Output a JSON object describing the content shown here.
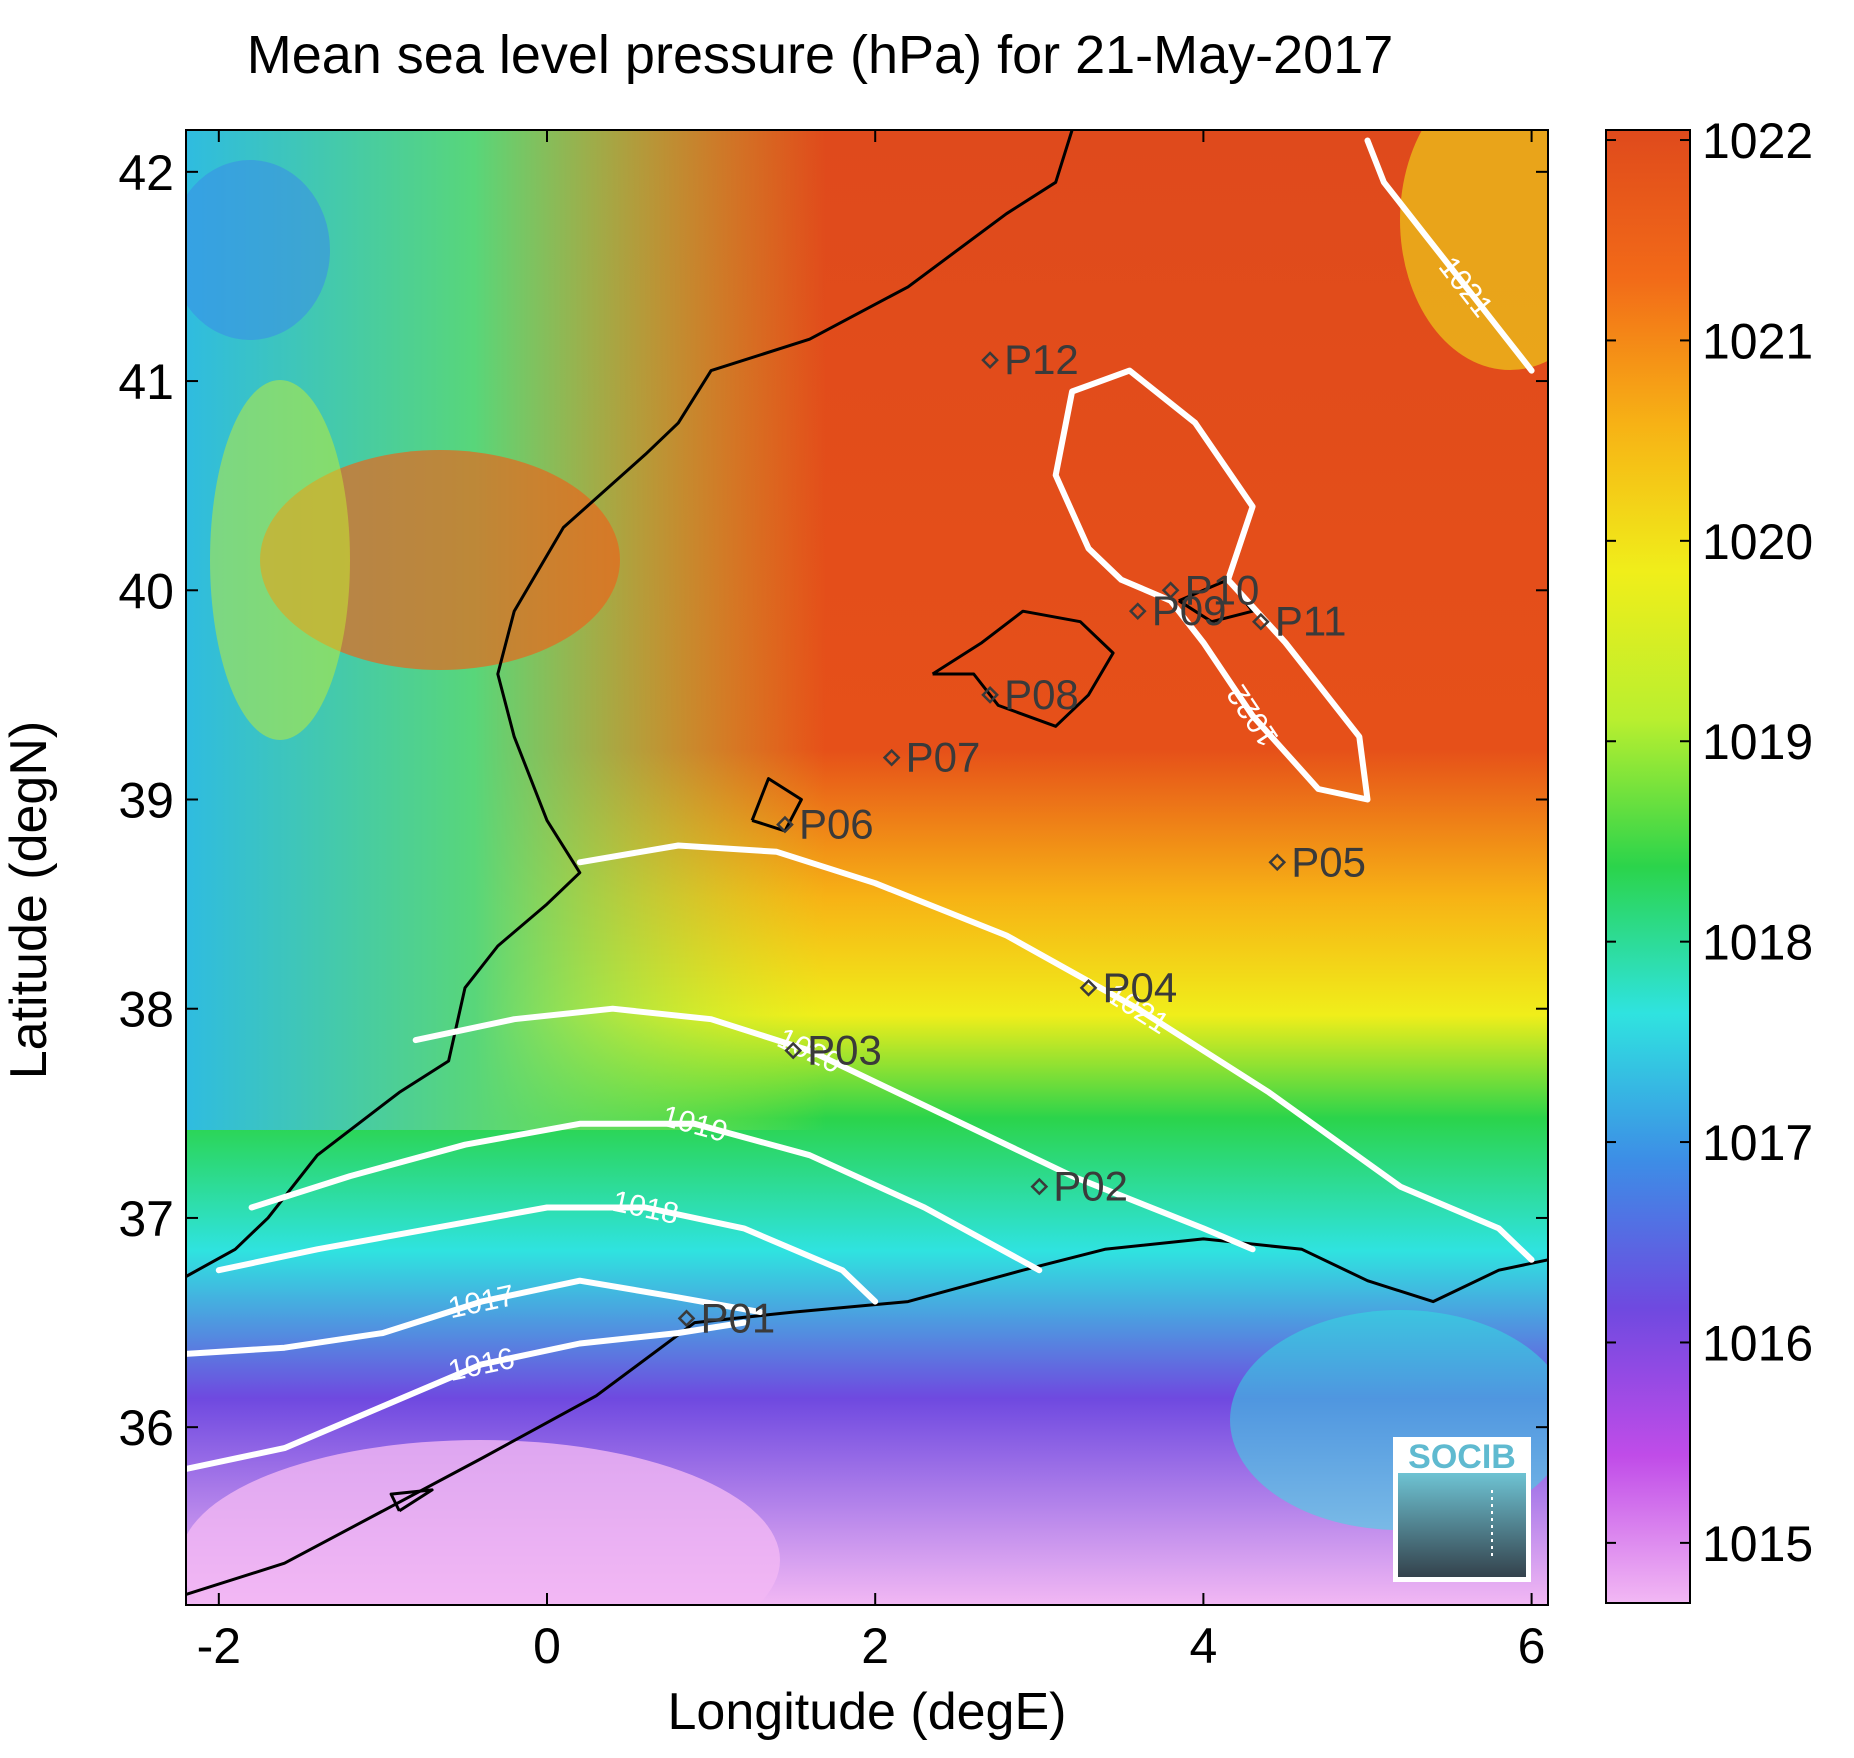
{
  "title": "Mean sea level pressure (hPa) for 21-May-2017",
  "xlabel": "Longitude (degE)",
  "ylabel": "Latitude (degN)",
  "logo_text": "SOCIB",
  "map_extent": {
    "lon": [
      -2.2,
      6.1
    ],
    "lat": [
      35.15,
      42.2
    ]
  },
  "x_ticks": [
    {
      "value": -2,
      "label": "-2"
    },
    {
      "value": 0,
      "label": "0"
    },
    {
      "value": 2,
      "label": "2"
    },
    {
      "value": 4,
      "label": "4"
    },
    {
      "value": 6,
      "label": "6"
    }
  ],
  "y_ticks": [
    {
      "value": 36,
      "label": "36"
    },
    {
      "value": 37,
      "label": "37"
    },
    {
      "value": 38,
      "label": "38"
    },
    {
      "value": 39,
      "label": "39"
    },
    {
      "value": 40,
      "label": "40"
    },
    {
      "value": 41,
      "label": "41"
    },
    {
      "value": 42,
      "label": "42"
    }
  ],
  "colorbar": {
    "range": [
      1014.7,
      1022.05
    ],
    "ticks": [
      {
        "value": 1015,
        "label": "1015"
      },
      {
        "value": 1016,
        "label": "1016"
      },
      {
        "value": 1017,
        "label": "1017"
      },
      {
        "value": 1018,
        "label": "1018"
      },
      {
        "value": 1019,
        "label": "1019"
      },
      {
        "value": 1020,
        "label": "1020"
      },
      {
        "value": 1021,
        "label": "1021"
      },
      {
        "value": 1022,
        "label": "1022"
      }
    ],
    "colors": [
      "#f2b8f4",
      "#c04ce8",
      "#6f49e0",
      "#3d8de6",
      "#2fe3e0",
      "#2bd44b",
      "#b9ef2f",
      "#f0ee1a",
      "#f7b215",
      "#f26a18",
      "#df4a1c"
    ]
  },
  "contours": [
    {
      "level": 1016,
      "label": "1016",
      "points": [
        [
          -2.2,
          35.8
        ],
        [
          -1.6,
          35.9
        ],
        [
          -1.0,
          36.1
        ],
        [
          -0.4,
          36.3
        ],
        [
          0.2,
          36.4
        ],
        [
          0.8,
          36.45
        ],
        [
          1.2,
          36.5
        ]
      ]
    },
    {
      "level": 1017,
      "label": "1017",
      "points": [
        [
          -2.2,
          36.35
        ],
        [
          -1.6,
          36.38
        ],
        [
          -1.0,
          36.45
        ],
        [
          -0.4,
          36.6
        ],
        [
          0.2,
          36.7
        ],
        [
          0.8,
          36.62
        ],
        [
          1.3,
          36.55
        ]
      ]
    },
    {
      "level": 1018,
      "label": "1018",
      "points": [
        [
          -2.0,
          36.75
        ],
        [
          -1.4,
          36.85
        ],
        [
          -0.7,
          36.95
        ],
        [
          0.0,
          37.05
        ],
        [
          0.6,
          37.05
        ],
        [
          1.2,
          36.95
        ],
        [
          1.8,
          36.75
        ],
        [
          2.0,
          36.6
        ]
      ]
    },
    {
      "level": 1019,
      "label": "1019",
      "points": [
        [
          -1.8,
          37.05
        ],
        [
          -1.2,
          37.2
        ],
        [
          -0.5,
          37.35
        ],
        [
          0.2,
          37.45
        ],
        [
          0.9,
          37.45
        ],
        [
          1.6,
          37.3
        ],
        [
          2.3,
          37.05
        ],
        [
          3.0,
          36.75
        ]
      ]
    },
    {
      "level": 1020,
      "label": "1020",
      "points": [
        [
          -0.8,
          37.85
        ],
        [
          -0.2,
          37.95
        ],
        [
          0.4,
          38.0
        ],
        [
          1.0,
          37.95
        ],
        [
          1.6,
          37.8
        ],
        [
          2.4,
          37.5
        ],
        [
          3.2,
          37.2
        ],
        [
          4.0,
          36.95
        ],
        [
          4.3,
          36.85
        ]
      ]
    },
    {
      "level": 1021,
      "label": "1021",
      "points": [
        [
          0.2,
          38.7
        ],
        [
          0.8,
          38.78
        ],
        [
          1.4,
          38.75
        ],
        [
          2.0,
          38.6
        ],
        [
          2.8,
          38.35
        ],
        [
          3.6,
          38.0
        ],
        [
          4.4,
          37.6
        ],
        [
          5.2,
          37.15
        ],
        [
          5.8,
          36.95
        ],
        [
          6.0,
          36.8
        ]
      ]
    },
    {
      "level": 1021,
      "label": "1021",
      "points": [
        [
          5.0,
          42.15
        ],
        [
          5.1,
          41.95
        ],
        [
          5.35,
          41.7
        ],
        [
          5.6,
          41.45
        ],
        [
          5.85,
          41.2
        ],
        [
          6.0,
          41.05
        ]
      ]
    },
    {
      "level": 1022,
      "label": "1022",
      "points": [
        [
          3.55,
          41.05
        ],
        [
          3.95,
          40.8
        ],
        [
          4.3,
          40.4
        ],
        [
          4.15,
          40.05
        ],
        [
          4.5,
          39.75
        ],
        [
          4.95,
          39.3
        ],
        [
          5.0,
          39.0
        ],
        [
          4.7,
          39.05
        ],
        [
          4.3,
          39.4
        ],
        [
          4.0,
          39.75
        ],
        [
          3.8,
          39.95
        ],
        [
          3.5,
          40.05
        ],
        [
          3.3,
          40.2
        ],
        [
          3.1,
          40.55
        ],
        [
          3.2,
          40.95
        ],
        [
          3.55,
          41.05
        ]
      ]
    }
  ],
  "points": [
    {
      "name": "P01",
      "lon": 0.85,
      "lat": 36.52
    },
    {
      "name": "P02",
      "lon": 3.0,
      "lat": 37.15
    },
    {
      "name": "P03",
      "lon": 1.5,
      "lat": 37.8
    },
    {
      "name": "P04",
      "lon": 3.3,
      "lat": 38.1
    },
    {
      "name": "P05",
      "lon": 4.45,
      "lat": 38.7
    },
    {
      "name": "P06",
      "lon": 1.45,
      "lat": 38.88
    },
    {
      "name": "P07",
      "lon": 2.1,
      "lat": 39.2
    },
    {
      "name": "P08",
      "lon": 2.7,
      "lat": 39.5
    },
    {
      "name": "P09",
      "lon": 3.6,
      "lat": 39.9
    },
    {
      "name": "P10",
      "lon": 3.8,
      "lat": 40.0
    },
    {
      "name": "P11",
      "lon": 4.35,
      "lat": 39.85
    },
    {
      "name": "P12",
      "lon": 2.7,
      "lat": 41.1
    }
  ],
  "coastline": [
    [
      [
        -2.2,
        36.72
      ],
      [
        -1.9,
        36.85
      ],
      [
        -1.7,
        37.0
      ],
      [
        -1.4,
        37.3
      ],
      [
        -0.9,
        37.6
      ],
      [
        -0.6,
        37.75
      ],
      [
        -0.5,
        38.1
      ],
      [
        -0.3,
        38.3
      ],
      [
        0.0,
        38.5
      ],
      [
        0.2,
        38.65
      ],
      [
        0.0,
        38.9
      ],
      [
        -0.2,
        39.3
      ],
      [
        -0.3,
        39.6
      ],
      [
        -0.2,
        39.9
      ],
      [
        0.1,
        40.3
      ],
      [
        0.6,
        40.65
      ],
      [
        0.8,
        40.8
      ],
      [
        1.0,
        41.05
      ],
      [
        1.6,
        41.2
      ],
      [
        2.2,
        41.45
      ],
      [
        2.8,
        41.8
      ],
      [
        3.1,
        41.95
      ],
      [
        3.2,
        42.2
      ]
    ],
    [
      [
        -2.2,
        35.2
      ],
      [
        -1.6,
        35.35
      ],
      [
        -1.0,
        35.6
      ],
      [
        -0.4,
        35.85
      ],
      [
        0.3,
        36.15
      ],
      [
        0.9,
        36.5
      ],
      [
        1.5,
        36.55
      ],
      [
        2.2,
        36.6
      ],
      [
        2.9,
        36.75
      ],
      [
        3.4,
        36.85
      ],
      [
        4.0,
        36.9
      ],
      [
        4.6,
        36.85
      ],
      [
        5.0,
        36.7
      ],
      [
        5.4,
        36.6
      ],
      [
        5.8,
        36.75
      ],
      [
        6.1,
        36.8
      ]
    ],
    [
      [
        2.35,
        39.6
      ],
      [
        2.6,
        39.6
      ],
      [
        2.75,
        39.45
      ],
      [
        3.1,
        39.35
      ],
      [
        3.3,
        39.5
      ],
      [
        3.45,
        39.7
      ],
      [
        3.25,
        39.85
      ],
      [
        2.9,
        39.9
      ],
      [
        2.65,
        39.75
      ],
      [
        2.35,
        39.6
      ]
    ],
    [
      [
        3.85,
        39.95
      ],
      [
        4.15,
        40.05
      ],
      [
        4.3,
        39.9
      ],
      [
        4.05,
        39.85
      ],
      [
        3.85,
        39.95
      ]
    ],
    [
      [
        1.25,
        38.9
      ],
      [
        1.45,
        38.85
      ],
      [
        1.55,
        39.0
      ],
      [
        1.35,
        39.1
      ],
      [
        1.25,
        38.9
      ]
    ],
    [
      [
        -0.9,
        35.6
      ],
      [
        -0.7,
        35.7
      ],
      [
        -0.95,
        35.68
      ],
      [
        -0.9,
        35.6
      ]
    ]
  ]
}
